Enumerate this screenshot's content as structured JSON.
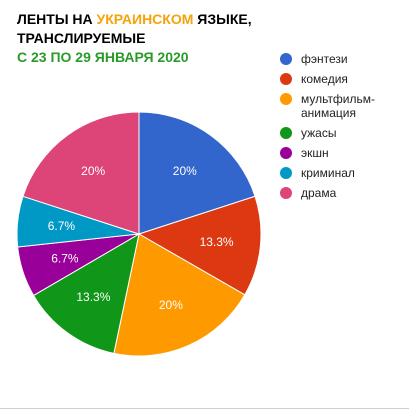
{
  "title": {
    "part1": "ЛЕНТЫ НА ",
    "highlight": "УКРАИНСКОМ",
    "part2": " ЯЗЫКЕ,",
    "line2": "ТРАНСЛИРУЕМЫЕ",
    "subtitle": "С 23 ПО 29 ЯНВАРЯ 2020"
  },
  "colors": {
    "title": "#000000",
    "highlight": "#f4a30b",
    "subtitle": "#2a9a2a"
  },
  "chart_data": {
    "type": "pie",
    "slices": [
      {
        "label": "фэнтези",
        "value": 20,
        "display": "20%",
        "color": "#3366cc"
      },
      {
        "label": "комедия",
        "value": 13.3,
        "display": "13.3%",
        "color": "#dc3912"
      },
      {
        "label": "мультфильм-анимация",
        "value": 20,
        "display": "20%",
        "color": "#ff9900"
      },
      {
        "label": "ужасы",
        "value": 13.3,
        "display": "13.3%",
        "color": "#109618"
      },
      {
        "label": "экшн",
        "value": 6.7,
        "display": "6.7%",
        "color": "#990099"
      },
      {
        "label": "криминал",
        "value": 6.7,
        "display": "6.7%",
        "color": "#0099c6"
      },
      {
        "label": "драма",
        "value": 20,
        "display": "20%",
        "color": "#dd4477"
      }
    ],
    "legend_position": "right"
  }
}
